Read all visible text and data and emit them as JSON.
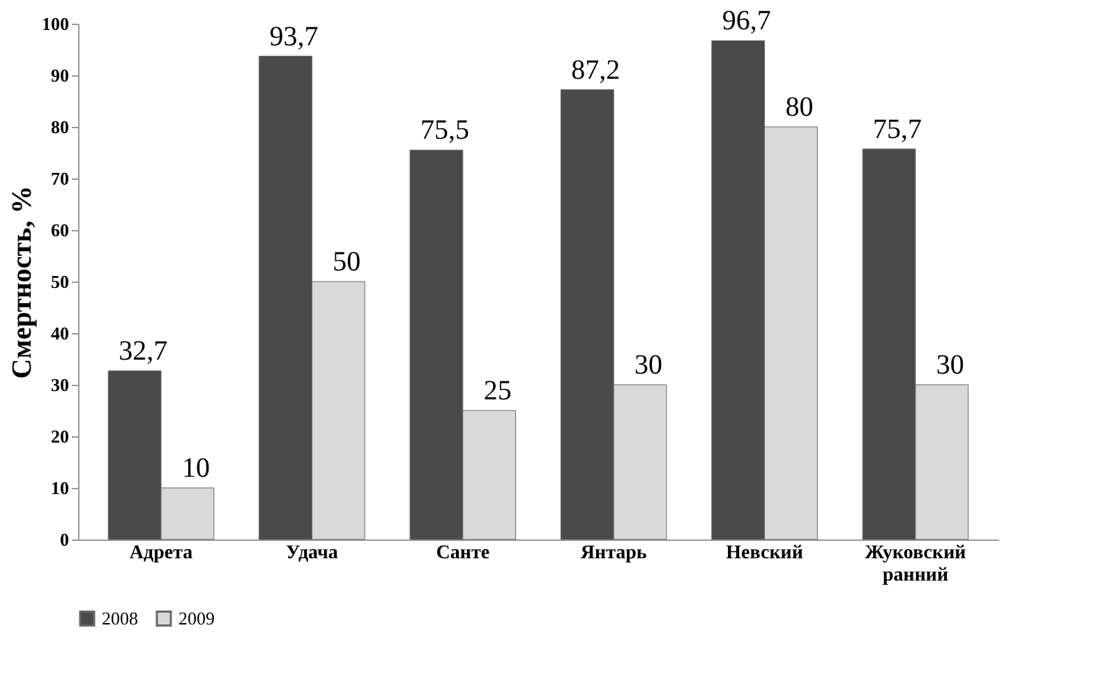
{
  "chart_data": {
    "type": "bar",
    "ylabel": "Смертность, %",
    "categories": [
      "Адрета",
      "Удача",
      "Санте",
      "Янтарь",
      "Невский",
      "Жуковский ранний"
    ],
    "series": [
      {
        "name": "2008",
        "color": "#4a4a4a",
        "values": [
          32.7,
          93.7,
          75.5,
          87.2,
          96.7,
          75.7
        ],
        "value_labels": [
          "32,7",
          "93,7",
          "75,5",
          "87,2",
          "96,7",
          "75,7"
        ]
      },
      {
        "name": "2009",
        "color": "#d9d9d9",
        "values": [
          10,
          50,
          25,
          30,
          80,
          30
        ],
        "value_labels": [
          "10",
          "50",
          "25",
          "30",
          "80",
          "30"
        ]
      }
    ],
    "ylim": [
      0,
      100
    ],
    "yticks": [
      0,
      10,
      20,
      30,
      40,
      50,
      60,
      70,
      80,
      90,
      100
    ],
    "grid": false,
    "legend": "bottom"
  }
}
